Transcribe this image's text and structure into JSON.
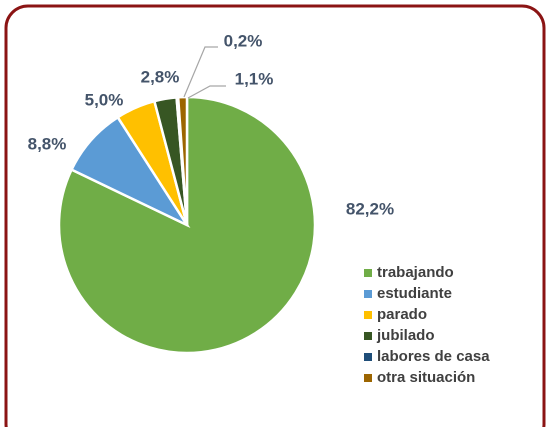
{
  "chart_data": {
    "type": "pie",
    "categories": [
      "trabajando",
      "estudiante",
      "parado",
      "jubilado",
      "labores de casa",
      "otra situación"
    ],
    "values": [
      82.2,
      8.8,
      5.0,
      2.8,
      0.2,
      1.1
    ],
    "value_labels": [
      "82,2%",
      "8,8%",
      "5,0%",
      "2,8%",
      "0,2%",
      "1,1%"
    ],
    "colors": [
      "#70ad47",
      "#5b9bd5",
      "#ffc000",
      "#375623",
      "#1f4e79",
      "#9c6500"
    ],
    "legend": "right"
  }
}
